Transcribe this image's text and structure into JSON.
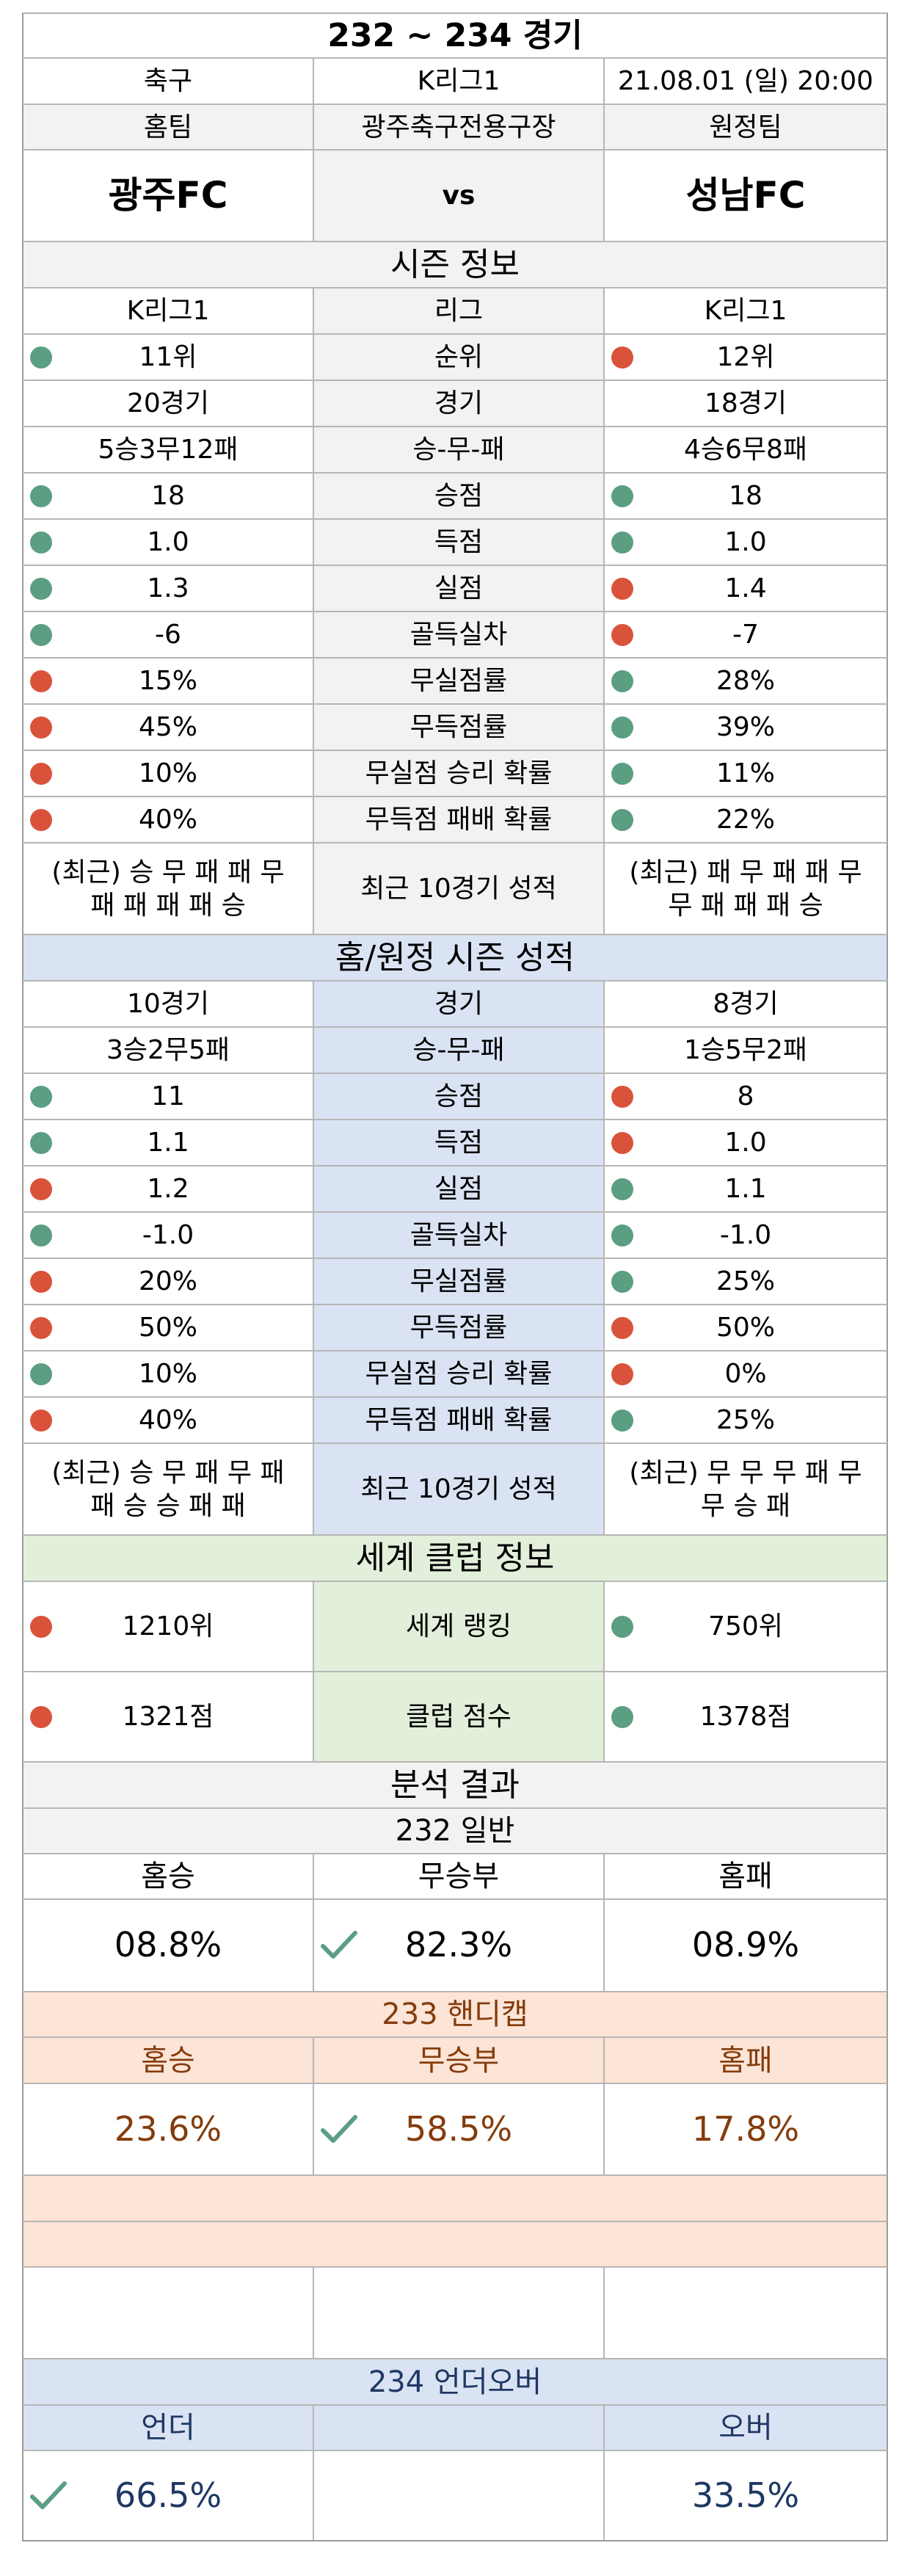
{
  "header": {
    "title": "232 ~ 234 경기",
    "sport": "축구",
    "league": "K리그1",
    "datetime": "21.08.01 (일) 20:00",
    "home_label": "홈팀",
    "venue": "광주축구전용구장",
    "away_label": "원정팀",
    "home_team": "광주FC",
    "vs": "vs",
    "away_team": "성남FC"
  },
  "season": {
    "title": "시즌 정보",
    "rows": [
      {
        "home": "K리그1",
        "label": "리그",
        "away": "K리그1",
        "home_dot": "",
        "away_dot": ""
      },
      {
        "home": "11위",
        "label": "순위",
        "away": "12위",
        "home_dot": "green",
        "away_dot": "red"
      },
      {
        "home": "20경기",
        "label": "경기",
        "away": "18경기",
        "home_dot": "",
        "away_dot": ""
      },
      {
        "home": "5승3무12패",
        "label": "승-무-패",
        "away": "4승6무8패",
        "home_dot": "",
        "away_dot": ""
      },
      {
        "home": "18",
        "label": "승점",
        "away": "18",
        "home_dot": "green",
        "away_dot": "green"
      },
      {
        "home": "1.0",
        "label": "득점",
        "away": "1.0",
        "home_dot": "green",
        "away_dot": "green"
      },
      {
        "home": "1.3",
        "label": "실점",
        "away": "1.4",
        "home_dot": "green",
        "away_dot": "red"
      },
      {
        "home": "-6",
        "label": "골득실차",
        "away": "-7",
        "home_dot": "green",
        "away_dot": "red"
      },
      {
        "home": "15%",
        "label": "무실점률",
        "away": "28%",
        "home_dot": "red",
        "away_dot": "green"
      },
      {
        "home": "45%",
        "label": "무득점률",
        "away": "39%",
        "home_dot": "red",
        "away_dot": "green"
      },
      {
        "home": "10%",
        "label": "무실점 승리 확률",
        "away": "11%",
        "home_dot": "red",
        "away_dot": "green"
      },
      {
        "home": "40%",
        "label": "무득점 패배 확률",
        "away": "22%",
        "home_dot": "red",
        "away_dot": "green"
      }
    ],
    "recent": {
      "home_line1": "(최근) 승 무 패 패 무",
      "home_line2": "패 패 패 패 승",
      "label": "최근 10경기 성적",
      "away_line1": "(최근) 패 무 패 패 무",
      "away_line2": "무 패 패 패 승"
    }
  },
  "homeaway": {
    "title": "홈/원정 시즌 성적",
    "rows": [
      {
        "home": "10경기",
        "label": "경기",
        "away": "8경기",
        "home_dot": "",
        "away_dot": ""
      },
      {
        "home": "3승2무5패",
        "label": "승-무-패",
        "away": "1승5무2패",
        "home_dot": "",
        "away_dot": ""
      },
      {
        "home": "11",
        "label": "승점",
        "away": "8",
        "home_dot": "green",
        "away_dot": "red"
      },
      {
        "home": "1.1",
        "label": "득점",
        "away": "1.0",
        "home_dot": "green",
        "away_dot": "red"
      },
      {
        "home": "1.2",
        "label": "실점",
        "away": "1.1",
        "home_dot": "red",
        "away_dot": "green"
      },
      {
        "home": "-1.0",
        "label": "골득실차",
        "away": "-1.0",
        "home_dot": "green",
        "away_dot": "green"
      },
      {
        "home": "20%",
        "label": "무실점률",
        "away": "25%",
        "home_dot": "red",
        "away_dot": "green"
      },
      {
        "home": "50%",
        "label": "무득점률",
        "away": "50%",
        "home_dot": "red",
        "away_dot": "red"
      },
      {
        "home": "10%",
        "label": "무실점 승리 확률",
        "away": "0%",
        "home_dot": "green",
        "away_dot": "red"
      },
      {
        "home": "40%",
        "label": "무득점 패배 확률",
        "away": "25%",
        "home_dot": "red",
        "away_dot": "green"
      }
    ],
    "recent": {
      "home_line1": "(최근) 승 무 패 무 패",
      "home_line2": "패 승 승 패 패",
      "label": "최근 10경기 성적",
      "away_line1": "(최근) 무 무 무 패 무",
      "away_line2": "무 승 패"
    }
  },
  "world": {
    "title": "세계 클럽 정보",
    "rows": [
      {
        "home": "1210위",
        "label": "세계 랭킹",
        "away": "750위",
        "home_dot": "red",
        "away_dot": "green"
      },
      {
        "home": "1321점",
        "label": "클럽 점수",
        "away": "1378점",
        "home_dot": "red",
        "away_dot": "green"
      }
    ]
  },
  "analysis": {
    "title": "분석 결과",
    "general": {
      "title": "232 일반",
      "win_label": "홈승",
      "draw_label": "무승부",
      "loss_label": "홈패",
      "win": "08.8%",
      "draw": "82.3%",
      "loss": "08.9%",
      "pick": "draw"
    },
    "handicap": {
      "title": "233 핸디캡",
      "win_label": "홈승",
      "draw_label": "무승부",
      "loss_label": "홈패",
      "win": "23.6%",
      "draw": "58.5%",
      "loss": "17.8%",
      "pick": "draw"
    },
    "underover": {
      "title": "234 언더오버",
      "under_label": "언더",
      "over_label": "오버",
      "under": "66.5%",
      "over": "33.5%",
      "pick": "under"
    }
  },
  "colors": {
    "green_dot": "#5b9e82",
    "red_dot": "#d9533a",
    "check": "#5b9e82",
    "brown_text": "#843c0c",
    "navy_text": "#1f3864",
    "blue_section": "#dae3f3",
    "green_section": "#e2efda",
    "orange_section": "#fce4d6"
  }
}
